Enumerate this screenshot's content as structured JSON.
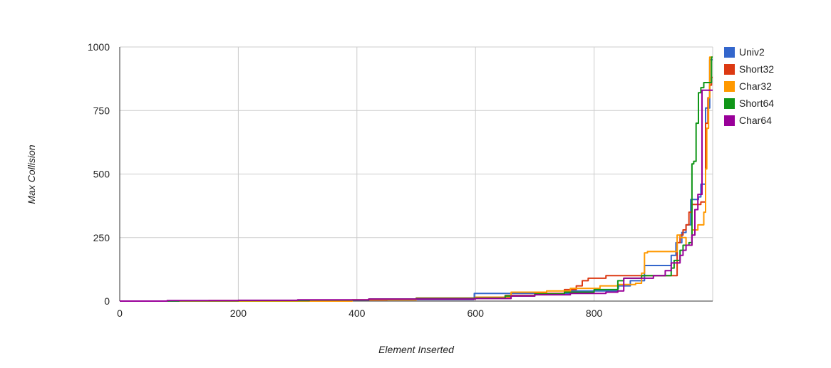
{
  "chart_data": {
    "type": "line",
    "xlabel": "Element Inserted",
    "ylabel": "Max Collision",
    "xlim": [
      0,
      1000
    ],
    "ylim": [
      0,
      1000
    ],
    "x_ticks": [
      "0",
      "200",
      "400",
      "600",
      "800"
    ],
    "y_ticks": [
      "0",
      "250",
      "500",
      "750",
      "1000"
    ],
    "x_tick_values": [
      0,
      200,
      400,
      600,
      800
    ],
    "y_tick_values": [
      0,
      250,
      500,
      750,
      1000
    ],
    "grid": true,
    "legend": "right",
    "series": [
      {
        "name": "Univ2",
        "color": "#3366cc",
        "points": [
          [
            0,
            0
          ],
          [
            150,
            1
          ],
          [
            300,
            3
          ],
          [
            450,
            6
          ],
          [
            597,
            10
          ],
          [
            598,
            30
          ],
          [
            700,
            30
          ],
          [
            760,
            40
          ],
          [
            840,
            50
          ],
          [
            841,
            60
          ],
          [
            860,
            60
          ],
          [
            861,
            80
          ],
          [
            880,
            80
          ],
          [
            885,
            140
          ],
          [
            920,
            140
          ],
          [
            930,
            180
          ],
          [
            938,
            230
          ],
          [
            948,
            270
          ],
          [
            955,
            300
          ],
          [
            960,
            300
          ],
          [
            963,
            400
          ],
          [
            975,
            400
          ],
          [
            976,
            410
          ],
          [
            980,
            460
          ],
          [
            985,
            460
          ],
          [
            988,
            760
          ],
          [
            992,
            760
          ],
          [
            995,
            950
          ],
          [
            1000,
            950
          ]
        ]
      },
      {
        "name": "Short32",
        "color": "#dc3912",
        "points": [
          [
            0,
            0
          ],
          [
            150,
            2
          ],
          [
            300,
            4
          ],
          [
            450,
            6
          ],
          [
            500,
            12
          ],
          [
            600,
            15
          ],
          [
            650,
            22
          ],
          [
            700,
            30
          ],
          [
            750,
            45
          ],
          [
            770,
            60
          ],
          [
            780,
            80
          ],
          [
            790,
            90
          ],
          [
            820,
            100
          ],
          [
            850,
            100
          ],
          [
            900,
            100
          ],
          [
            930,
            100
          ],
          [
            940,
            230
          ],
          [
            945,
            260
          ],
          [
            950,
            280
          ],
          [
            955,
            300
          ],
          [
            960,
            350
          ],
          [
            965,
            380
          ],
          [
            980,
            390
          ],
          [
            985,
            390
          ],
          [
            988,
            700
          ],
          [
            992,
            800
          ],
          [
            995,
            850
          ],
          [
            998,
            880
          ],
          [
            1000,
            880
          ]
        ]
      },
      {
        "name": "Char32",
        "color": "#ff9900",
        "points": [
          [
            0,
            0
          ],
          [
            200,
            0
          ],
          [
            350,
            0
          ],
          [
            390,
            0
          ],
          [
            392,
            5
          ],
          [
            500,
            8
          ],
          [
            600,
            15
          ],
          [
            660,
            35
          ],
          [
            720,
            40
          ],
          [
            760,
            50
          ],
          [
            810,
            60
          ],
          [
            840,
            65
          ],
          [
            870,
            70
          ],
          [
            880,
            110
          ],
          [
            885,
            190
          ],
          [
            890,
            195
          ],
          [
            935,
            195
          ],
          [
            940,
            260
          ],
          [
            945,
            250
          ],
          [
            955,
            220
          ],
          [
            960,
            220
          ],
          [
            965,
            280
          ],
          [
            975,
            300
          ],
          [
            985,
            350
          ],
          [
            988,
            520
          ],
          [
            990,
            680
          ],
          [
            993,
            800
          ],
          [
            995,
            960
          ],
          [
            1000,
            960
          ]
        ]
      },
      {
        "name": "Short64",
        "color": "#109618",
        "points": [
          [
            0,
            0
          ],
          [
            100,
            1
          ],
          [
            200,
            2
          ],
          [
            320,
            4
          ],
          [
            420,
            8
          ],
          [
            500,
            10
          ],
          [
            600,
            12
          ],
          [
            650,
            20
          ],
          [
            700,
            28
          ],
          [
            750,
            35
          ],
          [
            800,
            45
          ],
          [
            840,
            80
          ],
          [
            850,
            90
          ],
          [
            880,
            100
          ],
          [
            920,
            100
          ],
          [
            930,
            130
          ],
          [
            935,
            160
          ],
          [
            945,
            200
          ],
          [
            950,
            220
          ],
          [
            955,
            220
          ],
          [
            960,
            230
          ],
          [
            965,
            540
          ],
          [
            968,
            550
          ],
          [
            972,
            700
          ],
          [
            976,
            820
          ],
          [
            980,
            840
          ],
          [
            985,
            860
          ],
          [
            995,
            860
          ],
          [
            998,
            960
          ],
          [
            1000,
            960
          ]
        ]
      },
      {
        "name": "Char64",
        "color": "#990099",
        "points": [
          [
            0,
            0
          ],
          [
            80,
            2
          ],
          [
            200,
            3
          ],
          [
            300,
            5
          ],
          [
            420,
            8
          ],
          [
            600,
            10
          ],
          [
            660,
            20
          ],
          [
            700,
            25
          ],
          [
            760,
            30
          ],
          [
            820,
            35
          ],
          [
            840,
            40
          ],
          [
            850,
            90
          ],
          [
            900,
            100
          ],
          [
            920,
            120
          ],
          [
            930,
            150
          ],
          [
            945,
            180
          ],
          [
            950,
            200
          ],
          [
            955,
            220
          ],
          [
            960,
            220
          ],
          [
            965,
            260
          ],
          [
            970,
            360
          ],
          [
            975,
            420
          ],
          [
            978,
            420
          ],
          [
            982,
            830
          ],
          [
            986,
            830
          ],
          [
            1000,
            830
          ]
        ]
      }
    ]
  }
}
